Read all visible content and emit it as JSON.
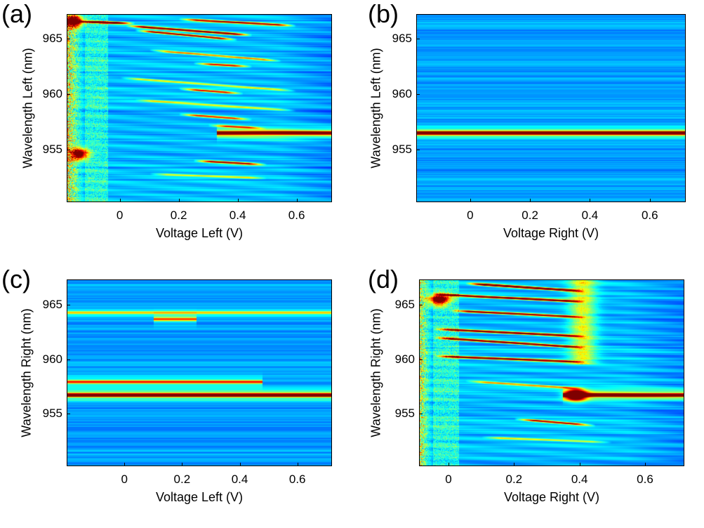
{
  "figure": {
    "type": "heatmap-grid",
    "colormap": "jet"
  },
  "chart_data": [
    {
      "type": "heatmap",
      "panel": "(a)",
      "xlabel": "Voltage Left (V)",
      "ylabel": "Wavelength Left (nm)",
      "xlim": [
        -0.18,
        0.72
      ],
      "ylim": [
        950.3,
        967.2
      ],
      "xticks": [
        0,
        0.2,
        0.4,
        0.6
      ],
      "xtick_labels": [
        "0",
        "0.2",
        "0.4",
        "0.6"
      ],
      "yticks": [
        955,
        960,
        965
      ],
      "ytick_labels": [
        "955",
        "960",
        "965"
      ],
      "colormap": "jet",
      "features": {
        "noisy_region_v_max": -0.12,
        "noise_level": 0.55,
        "background_fade_v": 0.55,
        "flat_lines": [
          {
            "wl": 956.5,
            "v_start": 0.33,
            "v_end": 0.72,
            "intensity": 1.0
          }
        ],
        "tilted_lines": [
          {
            "wl0": 966.6,
            "v_start": -0.15,
            "v_end": 0.05,
            "slope": -1.0,
            "intensity": 1.0
          },
          {
            "wl0": 966.2,
            "v_start": 0.02,
            "v_end": 0.45,
            "slope": -2.0,
            "intensity": 0.8
          },
          {
            "wl0": 966.8,
            "v_start": 0.2,
            "v_end": 0.6,
            "slope": -1.5,
            "intensity": 0.7
          },
          {
            "wl0": 965.8,
            "v_start": 0.05,
            "v_end": 0.4,
            "slope": -2.5,
            "intensity": 0.75
          },
          {
            "wl0": 964.0,
            "v_start": 0.1,
            "v_end": 0.55,
            "slope": -2.2,
            "intensity": 0.5
          },
          {
            "wl0": 962.8,
            "v_start": 0.25,
            "v_end": 0.45,
            "slope": -1.5,
            "intensity": 0.65
          },
          {
            "wl0": 960.5,
            "v_start": 0.2,
            "v_end": 0.42,
            "slope": -2.0,
            "intensity": 0.65
          },
          {
            "wl0": 958.2,
            "v_start": 0.2,
            "v_end": 0.45,
            "slope": -2.0,
            "intensity": 0.55
          },
          {
            "wl0": 957.2,
            "v_start": 0.3,
            "v_end": 0.5,
            "slope": -1.5,
            "intensity": 0.5
          },
          {
            "wl0": 954.0,
            "v_start": 0.25,
            "v_end": 0.5,
            "slope": -1.5,
            "intensity": 0.7
          },
          {
            "wl0": 952.8,
            "v_start": 0.1,
            "v_end": 0.5,
            "slope": -1.0,
            "intensity": 0.35
          },
          {
            "wl0": 961.5,
            "v_start": 0.0,
            "v_end": 0.6,
            "slope": -2.0,
            "intensity": 0.35
          },
          {
            "wl0": 959.5,
            "v_start": 0.05,
            "v_end": 0.6,
            "slope": -1.8,
            "intensity": 0.3
          }
        ],
        "bright_spots": [
          {
            "v": -0.16,
            "wl": 966.6,
            "intensity": 0.9
          },
          {
            "v": -0.14,
            "wl": 954.6,
            "intensity": 0.8
          }
        ]
      }
    },
    {
      "type": "heatmap",
      "panel": "(b)",
      "xlabel": "Voltage Right (V)",
      "ylabel": "Wavelength Left (nm)",
      "xlim": [
        -0.18,
        0.72
      ],
      "ylim": [
        950.3,
        967.2
      ],
      "xticks": [
        0,
        0.2,
        0.4,
        0.6
      ],
      "xtick_labels": [
        "0",
        "0.2",
        "0.4",
        "0.6"
      ],
      "yticks": [
        955,
        960,
        965
      ],
      "ytick_labels": [
        "955",
        "960",
        "965"
      ],
      "colormap": "jet",
      "features": {
        "noisy_region_v_max": -0.5,
        "noise_level": 0.03,
        "background_fade_v": 9,
        "flat_lines": [
          {
            "wl": 956.5,
            "v_start": -0.18,
            "v_end": 0.72,
            "intensity": 1.0
          }
        ],
        "tilted_lines": [],
        "bright_spots": []
      }
    },
    {
      "type": "heatmap",
      "panel": "(c)",
      "xlabel": "Voltage Left (V)",
      "ylabel": "Wavelength Right (nm)",
      "xlim": [
        -0.2,
        0.72
      ],
      "ylim": [
        950.2,
        967.3
      ],
      "xticks": [
        0,
        0.2,
        0.4,
        0.6
      ],
      "xtick_labels": [
        "0",
        "0.2",
        "0.4",
        "0.6"
      ],
      "yticks": [
        955,
        960,
        965
      ],
      "ytick_labels": [
        "955",
        "960",
        "965"
      ],
      "colormap": "jet",
      "features": {
        "noisy_region_v_max": -0.5,
        "noise_level": 0.03,
        "background_fade_v": 9,
        "flat_lines": [
          {
            "wl": 956.7,
            "v_start": -0.2,
            "v_end": 0.72,
            "intensity": 1.0
          },
          {
            "wl": 957.9,
            "v_start": -0.2,
            "v_end": 0.48,
            "intensity": 0.5
          },
          {
            "wl": 963.7,
            "v_start": 0.1,
            "v_end": 0.25,
            "intensity": 0.45
          },
          {
            "wl": 964.3,
            "v_start": -0.2,
            "v_end": 0.72,
            "intensity": 0.3
          }
        ],
        "tilted_lines": [],
        "bright_spots": []
      }
    },
    {
      "type": "heatmap",
      "panel": "(d)",
      "xlabel": "Voltage Right (V)",
      "ylabel": "Wavelength Right (nm)",
      "xlim": [
        -0.09,
        0.72
      ],
      "ylim": [
        950.2,
        967.3
      ],
      "xticks": [
        0,
        0.2,
        0.4,
        0.6
      ],
      "xtick_labels": [
        "0",
        "0.2",
        "0.4",
        "0.6"
      ],
      "yticks": [
        955,
        960,
        965
      ],
      "ytick_labels": [
        "955",
        "960",
        "965"
      ],
      "colormap": "jet",
      "features": {
        "noisy_region_v_max": -0.05,
        "noise_level": 0.5,
        "background_fade_v": 0.55,
        "vertical_band": {
          "v_center": 0.41,
          "width": 0.04,
          "wl_min": 959.5,
          "wl_max": 967.3,
          "intensity": 0.35
        },
        "flat_lines": [
          {
            "wl": 956.7,
            "v_start": 0.35,
            "v_end": 0.72,
            "intensity": 1.0
          }
        ],
        "tilted_lines": [
          {
            "wl0": 967.0,
            "v_start": 0.05,
            "v_end": 0.42,
            "slope": -2.0,
            "intensity": 1.0
          },
          {
            "wl0": 966.0,
            "v_start": -0.05,
            "v_end": 0.42,
            "slope": -1.5,
            "intensity": 0.9
          },
          {
            "wl0": 964.5,
            "v_start": 0.0,
            "v_end": 0.42,
            "slope": -1.5,
            "intensity": 0.75
          },
          {
            "wl0": 962.8,
            "v_start": -0.05,
            "v_end": 0.42,
            "slope": -1.5,
            "intensity": 0.85
          },
          {
            "wl0": 962.0,
            "v_start": -0.05,
            "v_end": 0.42,
            "slope": -2.0,
            "intensity": 0.85
          },
          {
            "wl0": 960.3,
            "v_start": -0.05,
            "v_end": 0.42,
            "slope": -1.2,
            "intensity": 0.8
          },
          {
            "wl0": 958.0,
            "v_start": 0.05,
            "v_end": 0.42,
            "slope": -2.0,
            "intensity": 0.45
          },
          {
            "wl0": 954.5,
            "v_start": 0.2,
            "v_end": 0.45,
            "slope": -2.5,
            "intensity": 0.7
          },
          {
            "wl0": 952.8,
            "v_start": 0.1,
            "v_end": 0.5,
            "slope": -1.2,
            "intensity": 0.35
          }
        ],
        "bright_spots": [
          {
            "v": -0.03,
            "wl": 965.5,
            "intensity": 0.8
          },
          {
            "v": 0.39,
            "wl": 956.7,
            "intensity": 1.0
          }
        ]
      }
    }
  ]
}
